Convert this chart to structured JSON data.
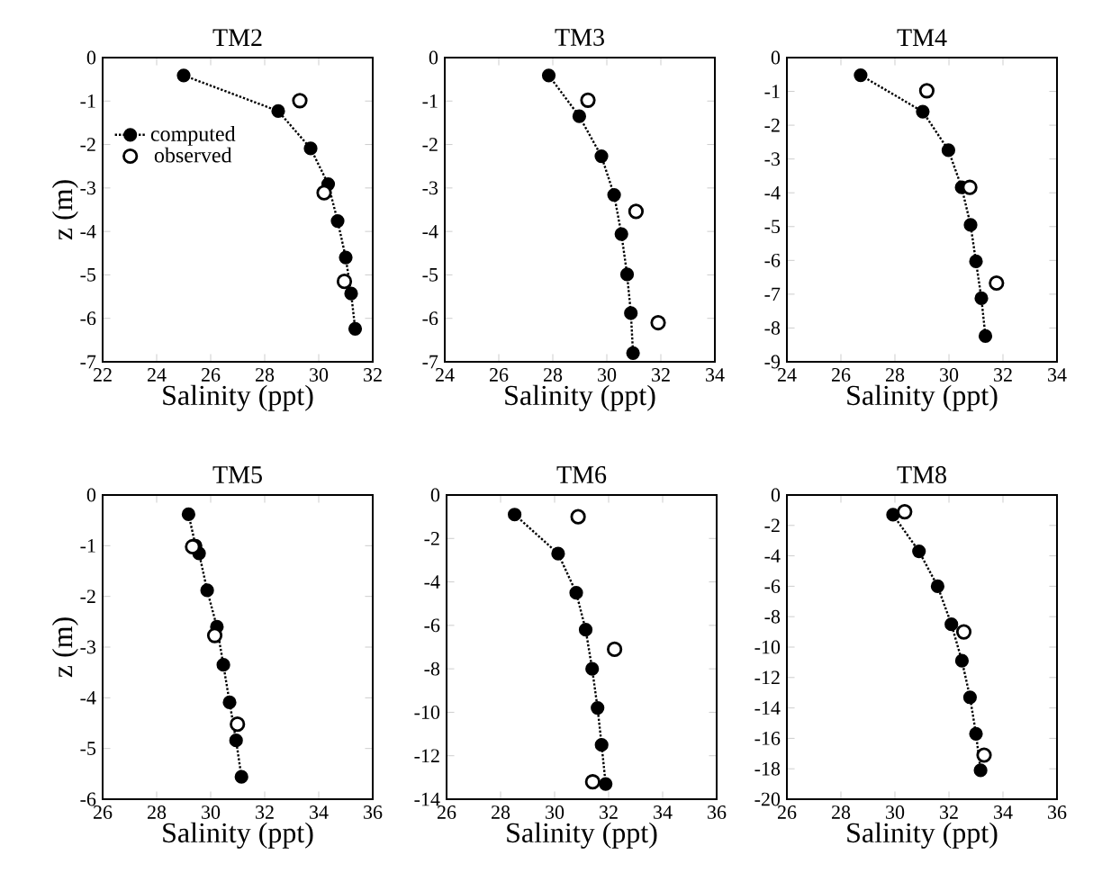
{
  "chart_data": [
    {
      "type": "line",
      "title": "TM2",
      "xlabel": "Salinity (ppt)",
      "ylabel": "z (m)",
      "xlim": [
        22,
        32
      ],
      "xticks": [
        22,
        24,
        26,
        28,
        30,
        32
      ],
      "ylim": [
        -7,
        0
      ],
      "yticks": [
        -7,
        -6,
        -5,
        -4,
        -3,
        -2,
        -1,
        0
      ],
      "legend": "top left",
      "marker": "circle",
      "series": [
        {
          "name": "computed",
          "line_style": "dotted",
          "color": "#000000",
          "x": [
            25.0,
            28.5,
            29.7,
            30.35,
            30.7,
            31.0,
            31.2,
            31.35
          ],
          "values": [
            -0.41,
            -1.23,
            -2.09,
            -2.91,
            -3.76,
            -4.6,
            -5.43,
            -6.24
          ]
        },
        {
          "name": "observed",
          "type": "scatter",
          "color": "#000000",
          "x": [
            29.3,
            30.2,
            30.95
          ],
          "values": [
            -0.99,
            -3.11,
            -5.15
          ]
        }
      ]
    },
    {
      "type": "line",
      "title": "TM3",
      "xlabel": "Salinity (ppt)",
      "xlim": [
        24,
        34
      ],
      "xticks": [
        24,
        26,
        28,
        30,
        32,
        34
      ],
      "ylim": [
        -7,
        0
      ],
      "yticks": [
        -7,
        -6,
        -5,
        -4,
        -3,
        -2,
        -1,
        0
      ],
      "marker": "circle",
      "series": [
        {
          "line_style": "dotted",
          "color": "#000000",
          "x": [
            27.85,
            28.98,
            29.8,
            30.27,
            30.54,
            30.75,
            30.89,
            30.97
          ],
          "values": [
            -0.41,
            -1.35,
            -2.27,
            -3.16,
            -4.06,
            -4.99,
            -5.88,
            -6.8
          ]
        },
        {
          "type": "scatter",
          "color": "#000000",
          "x": [
            29.3,
            31.08,
            31.9
          ],
          "values": [
            -0.98,
            -3.54,
            -6.1
          ]
        }
      ]
    },
    {
      "type": "line",
      "title": "TM4",
      "xlabel": "Salinity (ppt)",
      "xlim": [
        24,
        34
      ],
      "xticks": [
        24,
        26,
        28,
        30,
        32,
        34
      ],
      "ylim": [
        -9,
        0
      ],
      "yticks": [
        -9,
        -8,
        -7,
        -6,
        -5,
        -4,
        -3,
        -2,
        -1,
        0
      ],
      "marker": "circle",
      "series": [
        {
          "line_style": "dotted",
          "color": "#000000",
          "x": [
            26.73,
            29.03,
            29.98,
            30.47,
            30.8,
            31.0,
            31.2,
            31.35
          ],
          "values": [
            -0.52,
            -1.6,
            -2.74,
            -3.84,
            -4.95,
            -6.03,
            -7.12,
            -8.24
          ]
        },
        {
          "type": "scatter",
          "color": "#000000",
          "x": [
            29.18,
            30.77,
            31.76
          ],
          "values": [
            -0.98,
            -3.84,
            -6.67
          ]
        }
      ]
    },
    {
      "type": "line",
      "title": "TM5",
      "xlabel": "Salinity (ppt)",
      "ylabel": "z (m)",
      "xlim": [
        26,
        36
      ],
      "xticks": [
        26,
        28,
        30,
        32,
        34,
        36
      ],
      "ylim": [
        -6,
        0
      ],
      "yticks": [
        -6,
        -5,
        -4,
        -3,
        -2,
        -1,
        0
      ],
      "marker": "circle",
      "series": [
        {
          "line_style": "dotted",
          "color": "#000000",
          "x": [
            29.18,
            29.44,
            29.57,
            29.87,
            30.23,
            30.47,
            30.7,
            30.94,
            31.14
          ],
          "values": [
            -0.38,
            -1.0,
            -1.15,
            -1.88,
            -2.6,
            -3.35,
            -4.09,
            -4.84,
            -5.56
          ]
        },
        {
          "type": "scatter",
          "color": "#000000",
          "x": [
            29.33,
            30.15,
            30.99
          ],
          "values": [
            -1.02,
            -2.77,
            -4.52
          ]
        }
      ]
    },
    {
      "type": "line",
      "title": "TM6",
      "xlabel": "Salinity (ppt)",
      "xlim": [
        26,
        36
      ],
      "xticks": [
        26,
        28,
        30,
        32,
        34,
        36
      ],
      "ylim": [
        -14,
        0
      ],
      "yticks": [
        -14,
        -12,
        -10,
        -8,
        -6,
        -4,
        -2,
        0
      ],
      "marker": "circle",
      "series": [
        {
          "line_style": "dotted",
          "color": "#000000",
          "x": [
            28.52,
            30.13,
            30.8,
            31.15,
            31.39,
            31.59,
            31.74,
            31.89
          ],
          "values": [
            -0.9,
            -2.7,
            -4.5,
            -6.2,
            -8.0,
            -9.8,
            -11.5,
            -13.3
          ]
        },
        {
          "type": "scatter",
          "color": "#000000",
          "x": [
            30.87,
            32.22,
            31.41
          ],
          "values": [
            -1.0,
            -7.1,
            -13.2
          ]
        }
      ]
    },
    {
      "type": "line",
      "title": "TM8",
      "xlabel": "Salinity (ppt)",
      "xlim": [
        26,
        36
      ],
      "xticks": [
        26,
        28,
        30,
        32,
        34,
        36
      ],
      "ylim": [
        -20,
        0
      ],
      "yticks": [
        -20,
        -18,
        -16,
        -14,
        -12,
        -10,
        -8,
        -6,
        -4,
        -2,
        0
      ],
      "marker": "circle",
      "series": [
        {
          "line_style": "dotted",
          "color": "#000000",
          "x": [
            29.93,
            30.89,
            31.58,
            32.09,
            32.48,
            32.78,
            33.0,
            33.17
          ],
          "values": [
            -1.3,
            -3.7,
            -6.0,
            -8.5,
            -10.9,
            -13.3,
            -15.7,
            -18.1
          ]
        },
        {
          "type": "scatter",
          "color": "#000000",
          "x": [
            30.36,
            32.55,
            33.3
          ],
          "values": [
            -1.1,
            -9.0,
            -17.1
          ]
        }
      ]
    }
  ]
}
